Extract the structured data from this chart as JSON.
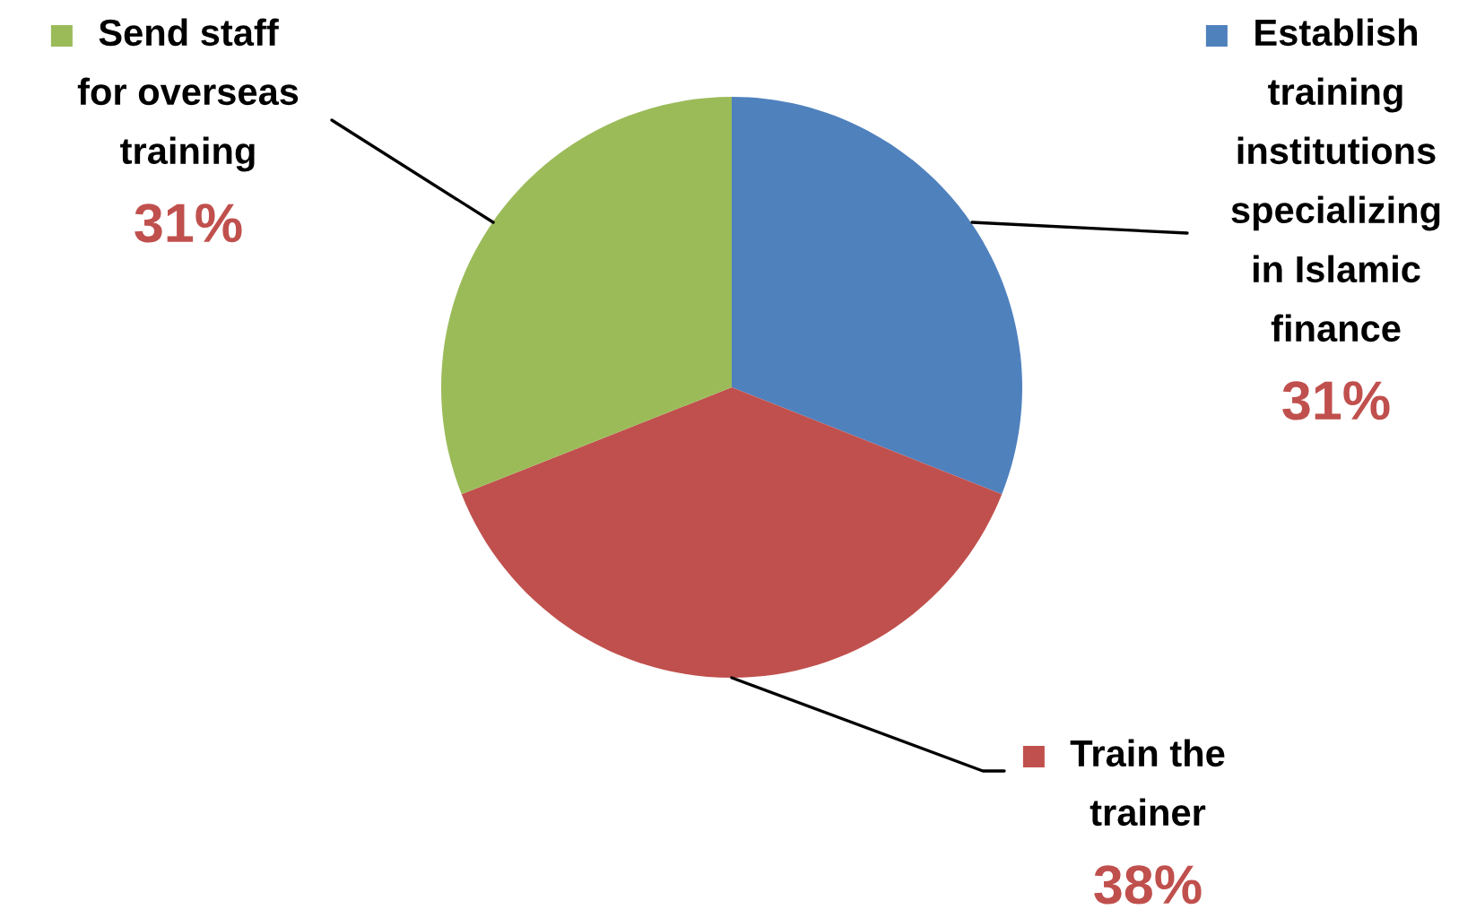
{
  "chart_data": {
    "type": "pie",
    "categories": [
      "Establish\ntraining\ninstitutions\nspecializing\nin Islamic\nfinance",
      "Train the\ntrainer",
      "Send staff\nfor overseas\ntraining"
    ],
    "values": [
      31,
      38,
      31
    ],
    "value_labels": [
      "31%",
      "38%",
      "31%"
    ],
    "colors": [
      "#4f81bd",
      "#c0504d",
      "#9bbb59"
    ],
    "legend": "right"
  }
}
